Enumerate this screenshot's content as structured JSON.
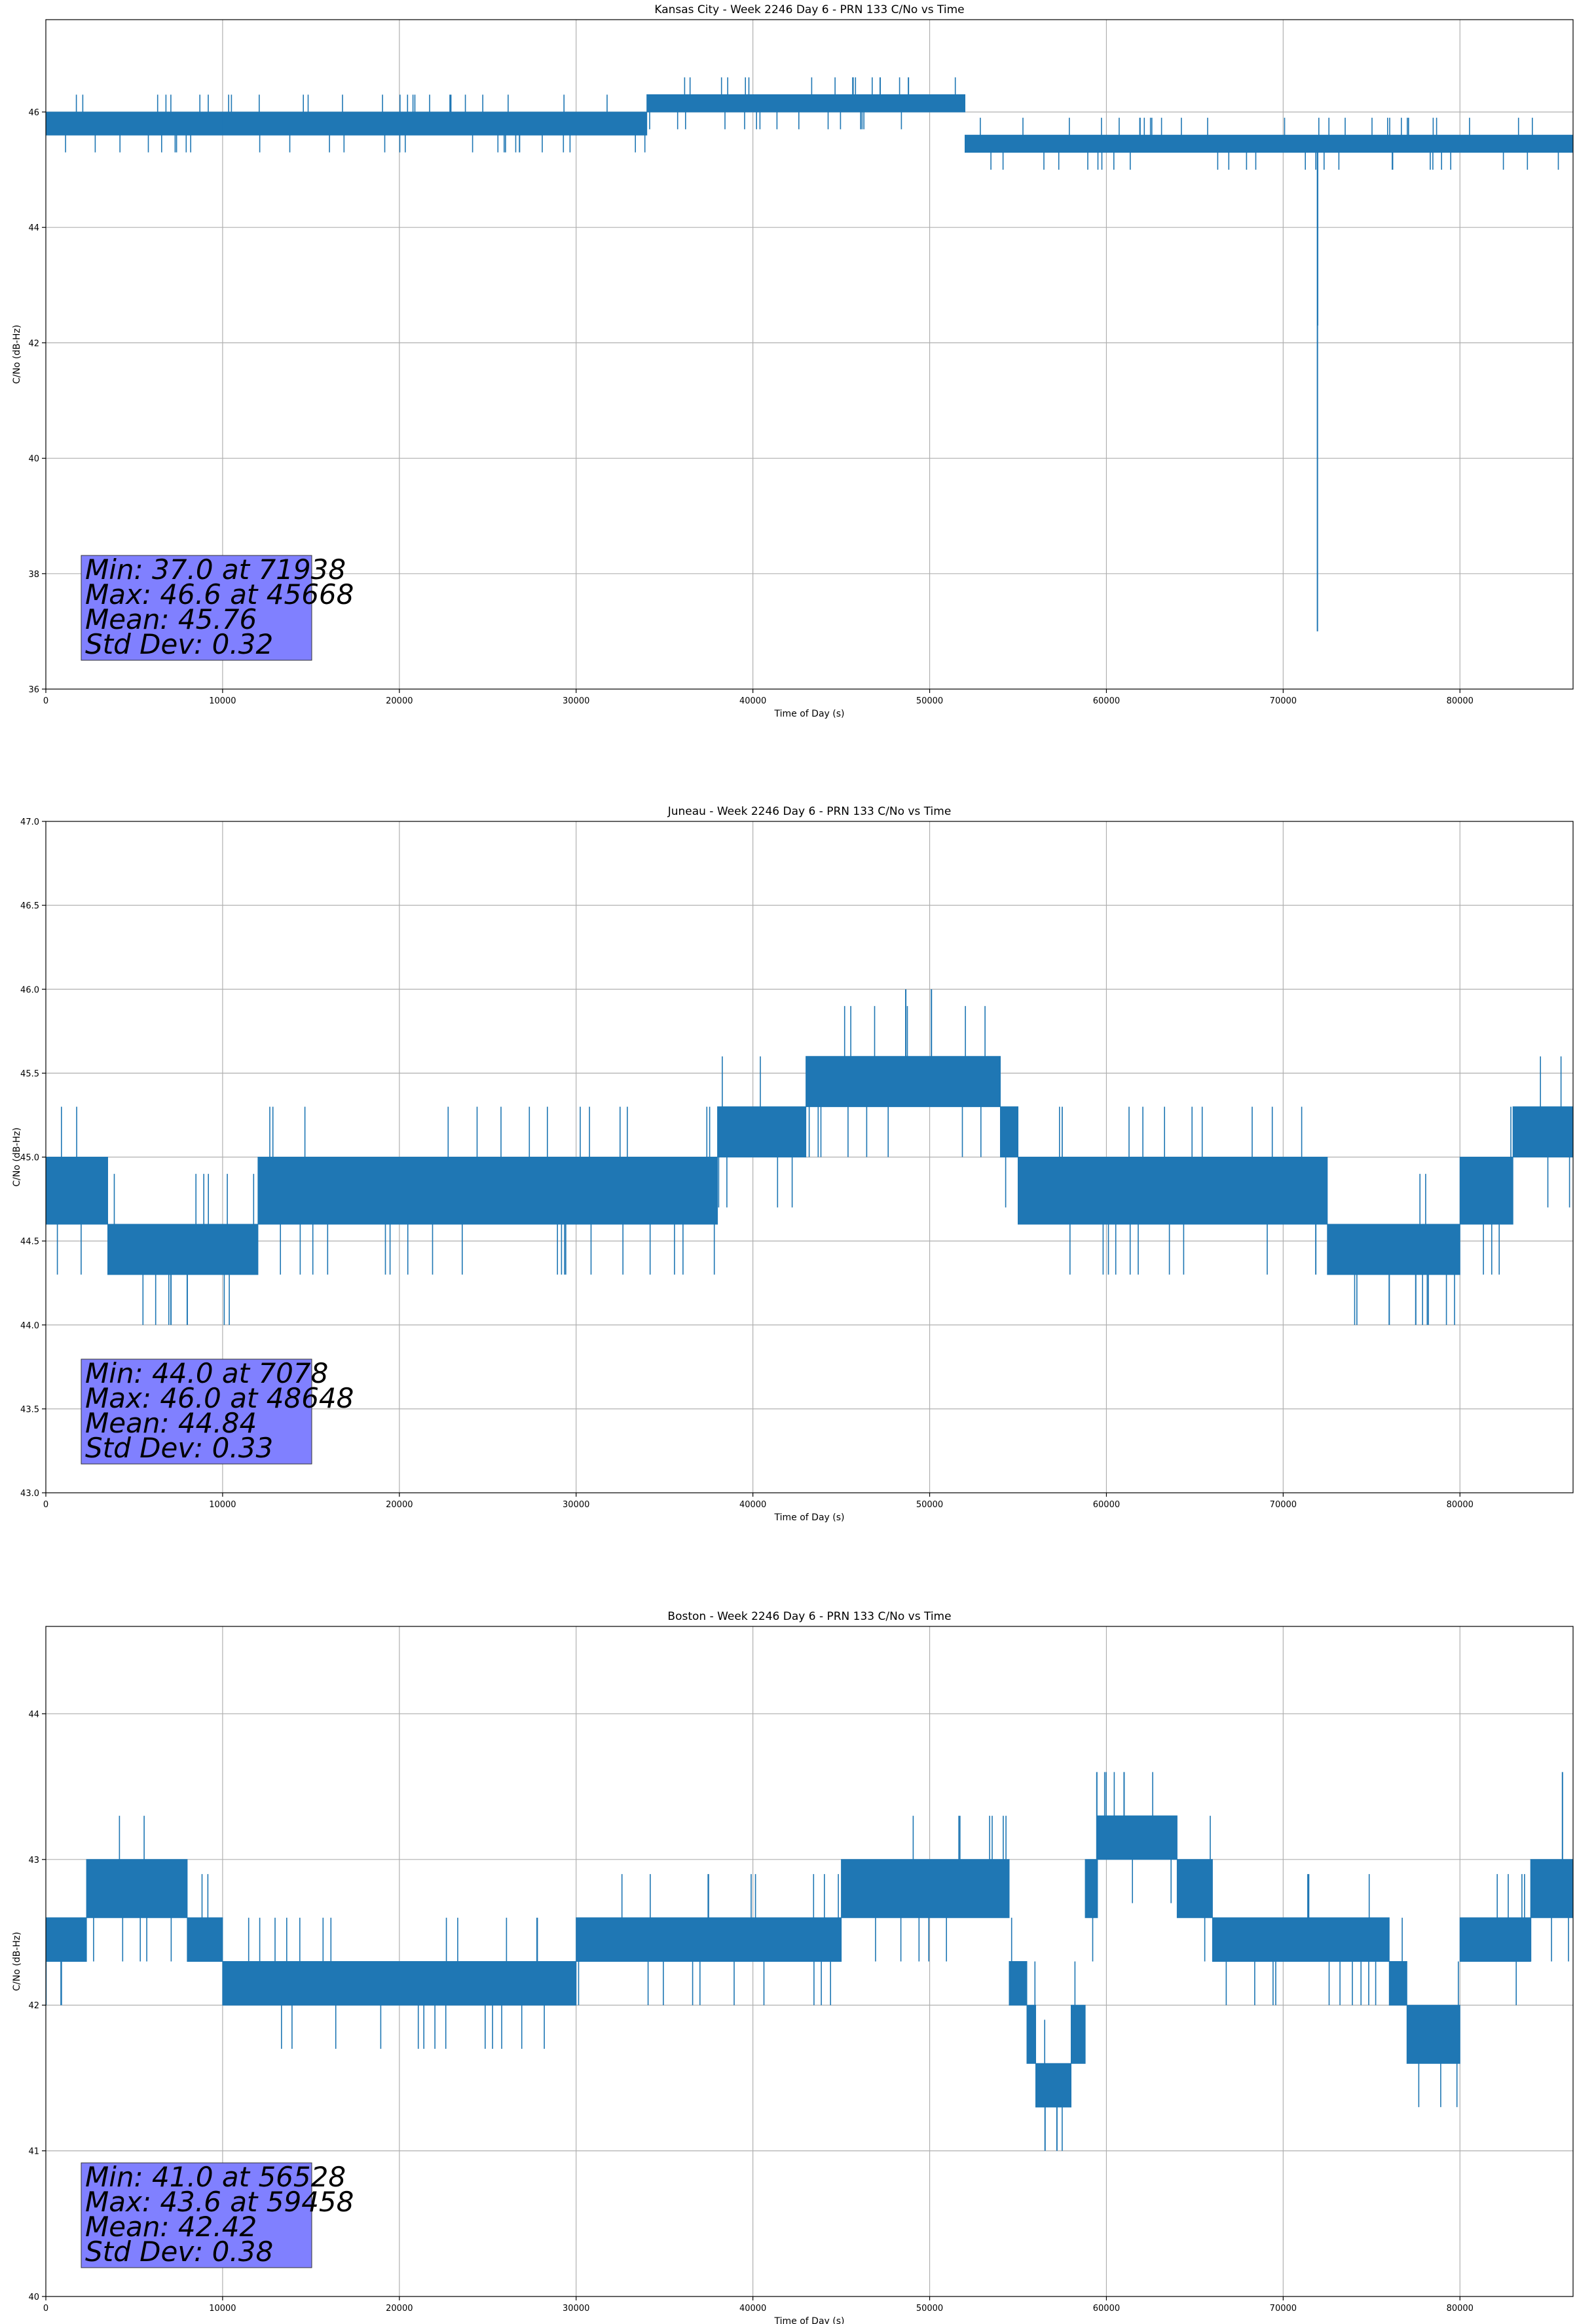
{
  "colors": {
    "series": "#1f77b4",
    "grid": "#b0b0b0",
    "stats_box_fill": "#8080ff",
    "background": "#ffffff"
  },
  "chart_data": [
    {
      "type": "line",
      "title": "Kansas City - Week 2246 Day 6 - PRN 133 C/No vs Time",
      "xlabel": "Time of Day (s)",
      "ylabel": "C/No (dB-Hz)",
      "xlim": [
        0,
        86400
      ],
      "ylim": [
        36,
        47.6
      ],
      "xticks": [
        0,
        10000,
        20000,
        30000,
        40000,
        50000,
        60000,
        70000,
        80000
      ],
      "yticks": [
        36,
        38,
        40,
        42,
        44,
        46
      ],
      "grid": true,
      "base_segments": [
        {
          "x_start": 0,
          "x_end": 10000,
          "low": 45.6,
          "high": 46.0
        },
        {
          "x_start": 10000,
          "x_end": 34000,
          "low": 45.6,
          "high": 46.0
        },
        {
          "x_start": 34000,
          "x_end": 52000,
          "low": 46.0,
          "high": 46.3
        },
        {
          "x_start": 52000,
          "x_end": 86400,
          "low": 45.3,
          "high": 45.6
        }
      ],
      "noise": {
        "step": 0.3,
        "spike_rate": 0.15
      },
      "events": [
        {
          "x": 71938,
          "y": 37.0
        },
        {
          "x": 71950,
          "y": 42.3
        },
        {
          "x": 45668,
          "y": 46.6
        },
        {
          "x": 47200,
          "y": 46.6
        },
        {
          "x": 48800,
          "y": 46.6
        }
      ],
      "stats": {
        "min_line": "Min: 37.0 at 71938",
        "max_line": "Max: 46.6 at 45668",
        "mean_line": "Mean: 45.76",
        "std_line": "Std Dev: 0.32"
      }
    },
    {
      "type": "line",
      "title": "Juneau - Week 2246 Day 6 - PRN 133 C/No vs Time",
      "xlabel": "Time of Day (s)",
      "ylabel": "C/No (dB-Hz)",
      "xlim": [
        0,
        86400
      ],
      "ylim": [
        43.0,
        47.0
      ],
      "xticks": [
        0,
        10000,
        20000,
        30000,
        40000,
        50000,
        60000,
        70000,
        80000
      ],
      "yticks": [
        43.0,
        43.5,
        44.0,
        44.5,
        45.0,
        45.5,
        46.0,
        46.5,
        47.0
      ],
      "grid": true,
      "base_segments": [
        {
          "x_start": 0,
          "x_end": 3500,
          "low": 44.6,
          "high": 45.0
        },
        {
          "x_start": 3500,
          "x_end": 12000,
          "low": 44.3,
          "high": 44.6
        },
        {
          "x_start": 12000,
          "x_end": 38000,
          "low": 44.6,
          "high": 45.0
        },
        {
          "x_start": 38000,
          "x_end": 43000,
          "low": 45.0,
          "high": 45.3
        },
        {
          "x_start": 43000,
          "x_end": 54000,
          "low": 45.3,
          "high": 45.6
        },
        {
          "x_start": 54000,
          "x_end": 55000,
          "low": 45.0,
          "high": 45.3
        },
        {
          "x_start": 55000,
          "x_end": 72500,
          "low": 44.6,
          "high": 45.0
        },
        {
          "x_start": 72500,
          "x_end": 80000,
          "low": 44.3,
          "high": 44.6
        },
        {
          "x_start": 80000,
          "x_end": 83000,
          "low": 44.6,
          "high": 45.0
        },
        {
          "x_start": 83000,
          "x_end": 86400,
          "low": 45.0,
          "high": 45.3
        }
      ],
      "noise": {
        "step": 0.3,
        "spike_rate": 0.12
      },
      "events": [
        {
          "x": 7078,
          "y": 44.0
        },
        {
          "x": 8000,
          "y": 44.0
        },
        {
          "x": 76000,
          "y": 44.0
        },
        {
          "x": 77500,
          "y": 44.0
        },
        {
          "x": 48648,
          "y": 46.0
        },
        {
          "x": 50100,
          "y": 46.0
        }
      ],
      "stats": {
        "min_line": "Min: 44.0 at 7078",
        "max_line": "Max: 46.0 at 48648",
        "mean_line": "Mean: 44.84",
        "std_line": "Std Dev: 0.33"
      }
    },
    {
      "type": "line",
      "title": "Boston - Week 2246 Day 6 - PRN 133 C/No vs Time",
      "xlabel": "Time of Day (s)",
      "ylabel": "C/No (dB-Hz)",
      "xlim": [
        0,
        86400
      ],
      "ylim": [
        40,
        44.6
      ],
      "xticks": [
        0,
        10000,
        20000,
        30000,
        40000,
        50000,
        60000,
        70000,
        80000
      ],
      "yticks": [
        40,
        41,
        42,
        43,
        44
      ],
      "grid": true,
      "base_segments": [
        {
          "x_start": 0,
          "x_end": 2300,
          "low": 42.3,
          "high": 42.6
        },
        {
          "x_start": 2300,
          "x_end": 8000,
          "low": 42.6,
          "high": 43.0
        },
        {
          "x_start": 8000,
          "x_end": 10000,
          "low": 42.3,
          "high": 42.6
        },
        {
          "x_start": 10000,
          "x_end": 30000,
          "low": 42.0,
          "high": 42.3
        },
        {
          "x_start": 30000,
          "x_end": 45000,
          "low": 42.3,
          "high": 42.6
        },
        {
          "x_start": 45000,
          "x_end": 54500,
          "low": 42.6,
          "high": 43.0
        },
        {
          "x_start": 54500,
          "x_end": 55500,
          "low": 42.0,
          "high": 42.3
        },
        {
          "x_start": 55500,
          "x_end": 56000,
          "low": 41.6,
          "high": 42.0
        },
        {
          "x_start": 56000,
          "x_end": 58000,
          "low": 41.3,
          "high": 41.6
        },
        {
          "x_start": 58000,
          "x_end": 58800,
          "low": 41.6,
          "high": 42.0
        },
        {
          "x_start": 58800,
          "x_end": 59500,
          "low": 42.6,
          "high": 43.0
        },
        {
          "x_start": 59500,
          "x_end": 64000,
          "low": 43.0,
          "high": 43.3
        },
        {
          "x_start": 64000,
          "x_end": 66000,
          "low": 42.6,
          "high": 43.0
        },
        {
          "x_start": 66000,
          "x_end": 76000,
          "low": 42.3,
          "high": 42.6
        },
        {
          "x_start": 76000,
          "x_end": 77000,
          "low": 42.0,
          "high": 42.3
        },
        {
          "x_start": 77000,
          "x_end": 80000,
          "low": 41.6,
          "high": 42.0
        },
        {
          "x_start": 80000,
          "x_end": 84000,
          "low": 42.3,
          "high": 42.6
        },
        {
          "x_start": 84000,
          "x_end": 86400,
          "low": 42.6,
          "high": 43.0
        }
      ],
      "noise": {
        "step": 0.3,
        "spike_rate": 0.12
      },
      "events": [
        {
          "x": 56528,
          "y": 41.0
        },
        {
          "x": 57200,
          "y": 41.0
        },
        {
          "x": 59458,
          "y": 43.6
        },
        {
          "x": 61000,
          "y": 43.6
        },
        {
          "x": 85800,
          "y": 43.6
        }
      ],
      "stats": {
        "min_line": "Min: 41.0 at 56528",
        "max_line": "Max: 43.6 at 59458",
        "mean_line": "Mean: 42.42",
        "std_line": "Std Dev: 0.38"
      }
    }
  ]
}
